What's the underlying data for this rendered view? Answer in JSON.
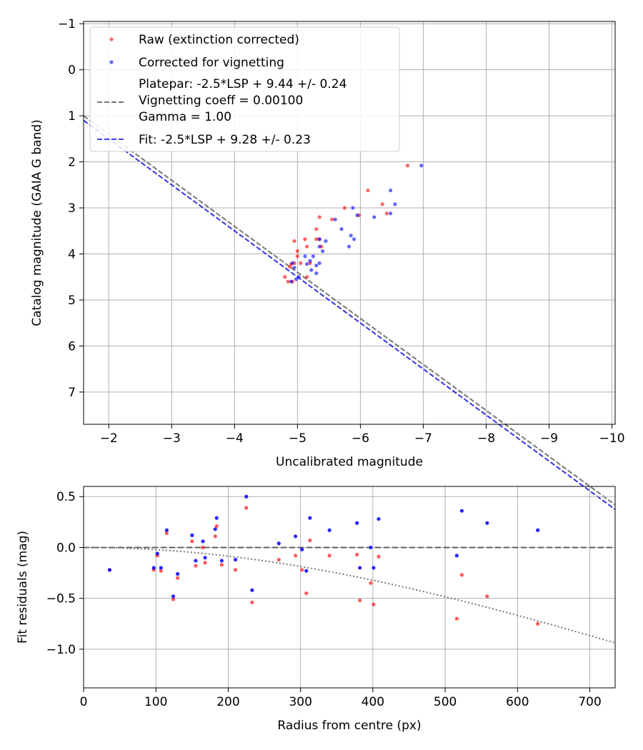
{
  "chart_data": [
    {
      "type": "scatter",
      "title": "",
      "xlabel": "Uncalibrated magnitude",
      "ylabel": "Catalog magnitude (GAIA G band)",
      "xlim": [
        -1.6,
        -10.05
      ],
      "ylim": [
        7.7,
        -1.05
      ],
      "grid": true,
      "xticks": [
        -2,
        -3,
        -4,
        -5,
        -6,
        -7,
        -8,
        -9,
        -10
      ],
      "xtick_labels": [
        "−2",
        "−3",
        "−4",
        "−5",
        "−6",
        "−7",
        "−8",
        "−9",
        "−10"
      ],
      "yticks": [
        -1,
        0,
        1,
        2,
        3,
        4,
        5,
        6,
        7
      ],
      "ytick_labels": [
        "−1",
        "0",
        "1",
        "2",
        "3",
        "4",
        "5",
        "6",
        "7"
      ],
      "legend": {
        "placement": "top-left",
        "entries": [
          {
            "label": "Raw (extinction corrected)",
            "kind": "dot",
            "color": "#ff0000"
          },
          {
            "label": "Corrected for vignetting",
            "kind": "dot",
            "color": "#0000ff"
          },
          {
            "label": "Platepar: -2.5*LSP + 9.44 +/- 0.24\nVignetting coeff = 0.00100\nGamma = 1.00",
            "kind": "dash",
            "color": "#555555"
          },
          {
            "label": "Fit: -2.5*LSP + 9.28 +/- 0.23",
            "kind": "dash",
            "color": "#0000dd"
          }
        ]
      },
      "lines": [
        {
          "name": "Platepar",
          "slope": -1,
          "intercept": -0.6,
          "color": "#555555",
          "style": "dashed"
        },
        {
          "name": "Fit",
          "slope": -1,
          "intercept": -0.5,
          "color": "#0000dd",
          "style": "dashed"
        }
      ],
      "series": [
        {
          "name": "Raw (extinction corrected)",
          "color": "#ff0000",
          "points": [
            [
              -6.75,
              2.08
            ],
            [
              -6.12,
              2.62
            ],
            [
              -6.35,
              2.92
            ],
            [
              -6.42,
              3.12
            ],
            [
              -5.98,
              3.16
            ],
            [
              -5.75,
              3.0
            ],
            [
              -5.55,
              3.25
            ],
            [
              -5.35,
              3.2
            ],
            [
              -5.3,
              3.46
            ],
            [
              -5.3,
              3.68
            ],
            [
              -5.35,
              3.68
            ],
            [
              -5.12,
              3.68
            ],
            [
              -5.15,
              3.84
            ],
            [
              -4.95,
              3.72
            ],
            [
              -5.38,
              3.84
            ],
            [
              -5.0,
              3.94
            ],
            [
              -5.0,
              4.05
            ],
            [
              -5.2,
              4.2
            ],
            [
              -5.05,
              4.2
            ],
            [
              -4.95,
              4.2
            ],
            [
              -4.9,
              4.22
            ],
            [
              -4.88,
              4.28
            ],
            [
              -4.8,
              4.5
            ],
            [
              -4.85,
              4.6
            ],
            [
              -4.92,
              4.6
            ],
            [
              -5.15,
              4.5
            ]
          ]
        },
        {
          "name": "Corrected for vignetting",
          "color": "#0000ff",
          "points": [
            [
              -6.97,
              2.08
            ],
            [
              -6.48,
              2.62
            ],
            [
              -6.55,
              2.92
            ],
            [
              -6.48,
              3.12
            ],
            [
              -5.88,
              3.0
            ],
            [
              -5.95,
              3.16
            ],
            [
              -5.6,
              3.25
            ],
            [
              -6.22,
              3.2
            ],
            [
              -5.85,
              3.6
            ],
            [
              -5.9,
              3.68
            ],
            [
              -5.7,
              3.46
            ],
            [
              -5.45,
              3.72
            ],
            [
              -5.35,
              3.68
            ],
            [
              -5.35,
              3.84
            ],
            [
              -5.82,
              3.84
            ],
            [
              -5.4,
              3.94
            ],
            [
              -5.25,
              4.05
            ],
            [
              -5.12,
              4.05
            ],
            [
              -5.2,
              4.15
            ],
            [
              -5.35,
              4.2
            ],
            [
              -5.15,
              4.22
            ],
            [
              -5.3,
              4.25
            ],
            [
              -5.22,
              4.35
            ],
            [
              -5.3,
              4.42
            ],
            [
              -5.02,
              4.5
            ],
            [
              -4.98,
              4.55
            ],
            [
              -4.9,
              4.6
            ],
            [
              -4.95,
              4.3
            ],
            [
              -4.92,
              4.2
            ]
          ]
        }
      ]
    },
    {
      "type": "scatter",
      "title": "",
      "xlabel": "Radius from centre (px)",
      "ylabel": "Fit residuals (mag)",
      "xlim": [
        0,
        735
      ],
      "ylim": [
        -1.38,
        0.6
      ],
      "grid": true,
      "xticks": [
        0,
        100,
        200,
        300,
        400,
        500,
        600,
        700
      ],
      "xtick_labels": [
        "0",
        "100",
        "200",
        "300",
        "400",
        "500",
        "600",
        "700"
      ],
      "yticks": [
        0.5,
        0.0,
        -0.5,
        -1.0
      ],
      "ytick_labels": [
        "0.5",
        "0.0",
        "−0.5",
        "−1.0"
      ],
      "zero_line": {
        "y": 0,
        "color": "#555555",
        "style": "dashed"
      },
      "vignetting_curve": {
        "coeff": 0.001,
        "color": "#777777",
        "style": "dotted"
      },
      "series": [
        {
          "name": "Raw",
          "color": "#ff0000",
          "points": [
            [
              36,
              -0.22
            ],
            [
              97,
              -0.22
            ],
            [
              102,
              -0.08
            ],
            [
              107,
              -0.23
            ],
            [
              115,
              0.14
            ],
            [
              124,
              -0.51
            ],
            [
              130,
              -0.3
            ],
            [
              150,
              0.06
            ],
            [
              155,
              -0.18
            ],
            [
              165,
              0.0
            ],
            [
              168,
              -0.15
            ],
            [
              182,
              0.11
            ],
            [
              184,
              0.21
            ],
            [
              191,
              -0.17
            ],
            [
              210,
              -0.22
            ],
            [
              225,
              0.39
            ],
            [
              233,
              -0.54
            ],
            [
              270,
              -0.12
            ],
            [
              293,
              -0.08
            ],
            [
              302,
              -0.22
            ],
            [
              308,
              -0.45
            ],
            [
              313,
              0.07
            ],
            [
              340,
              -0.08
            ],
            [
              378,
              -0.07
            ],
            [
              382,
              -0.52
            ],
            [
              397,
              -0.35
            ],
            [
              401,
              -0.56
            ],
            [
              408,
              -0.09
            ],
            [
              516,
              -0.7
            ],
            [
              523,
              -0.27
            ],
            [
              558,
              -0.48
            ],
            [
              628,
              -0.75
            ]
          ]
        },
        {
          "name": "Corrected",
          "color": "#0000ff",
          "points": [
            [
              36,
              -0.22
            ],
            [
              97,
              -0.2
            ],
            [
              102,
              -0.06
            ],
            [
              107,
              -0.2
            ],
            [
              115,
              0.17
            ],
            [
              124,
              -0.48
            ],
            [
              130,
              -0.26
            ],
            [
              150,
              0.12
            ],
            [
              155,
              -0.13
            ],
            [
              165,
              0.06
            ],
            [
              168,
              -0.1
            ],
            [
              182,
              0.18
            ],
            [
              184,
              0.29
            ],
            [
              191,
              -0.13
            ],
            [
              210,
              -0.12
            ],
            [
              225,
              0.5
            ],
            [
              233,
              -0.42
            ],
            [
              270,
              0.04
            ],
            [
              293,
              0.11
            ],
            [
              302,
              -0.02
            ],
            [
              308,
              -0.23
            ],
            [
              313,
              0.29
            ],
            [
              340,
              0.17
            ],
            [
              378,
              0.24
            ],
            [
              382,
              -0.2
            ],
            [
              397,
              0.0
            ],
            [
              401,
              -0.2
            ],
            [
              408,
              0.28
            ],
            [
              516,
              -0.08
            ],
            [
              523,
              0.36
            ],
            [
              558,
              0.24
            ],
            [
              628,
              0.17
            ]
          ]
        }
      ]
    }
  ]
}
